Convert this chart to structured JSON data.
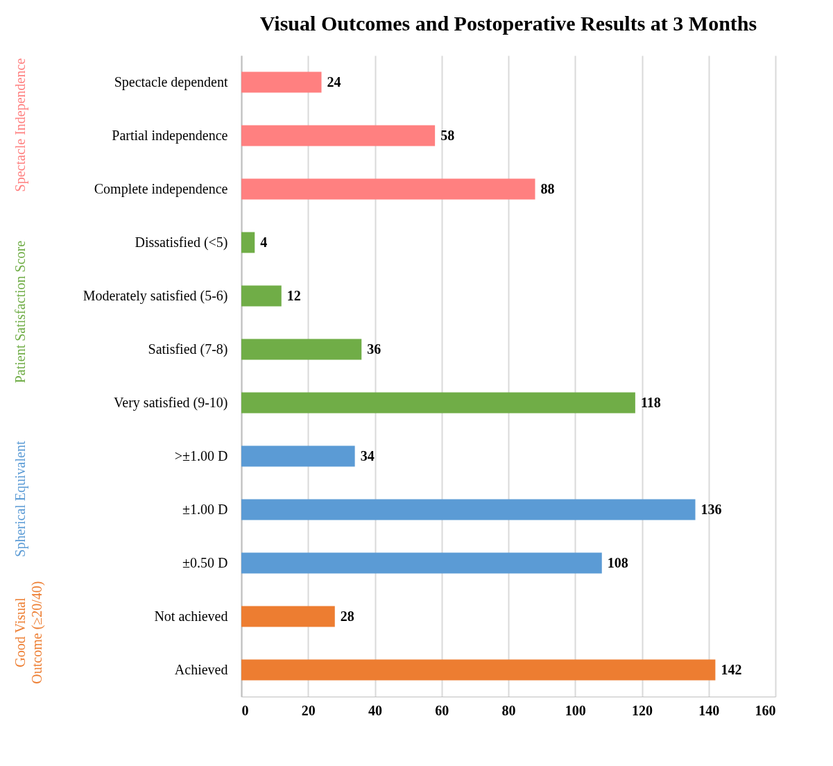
{
  "chart_data": {
    "type": "bar",
    "orientation": "horizontal",
    "title": "Visual Outcomes and Postoperative Results at 3 Months",
    "categories": [
      "Spectacle dependent",
      "Partial independence",
      "Complete independence",
      "Dissatisfied (<5)",
      "Moderately satisfied (5-6)",
      "Satisfied (7-8)",
      "Very satisfied (9-10)",
      ">±1.00 D",
      "±1.00 D",
      "±0.50 D",
      "Not achieved",
      "Achieved"
    ],
    "series": [
      {
        "name": "Spectacle Independence",
        "color": "#ff8080",
        "values": [
          24,
          58,
          88,
          null,
          null,
          null,
          null,
          null,
          null,
          null,
          null,
          null
        ]
      },
      {
        "name": "Patient Satisfaction Score",
        "color": "#70ad47",
        "values": [
          null,
          null,
          null,
          4,
          12,
          36,
          118,
          null,
          null,
          null,
          null,
          null
        ]
      },
      {
        "name": "Spherical Equivalent",
        "color": "#5b9bd5",
        "values": [
          null,
          null,
          null,
          null,
          null,
          null,
          null,
          34,
          136,
          108,
          null,
          null
        ]
      },
      {
        "name": "Good Visual Outcome (≥20/40)",
        "color": "#ed7d31",
        "values": [
          null,
          null,
          null,
          null,
          null,
          null,
          null,
          null,
          null,
          null,
          28,
          142
        ]
      }
    ],
    "xlim": [
      0,
      160
    ],
    "xticks": [
      0,
      20,
      40,
      60,
      80,
      100,
      120,
      140,
      160
    ],
    "grid": "x",
    "data_labels": true
  }
}
